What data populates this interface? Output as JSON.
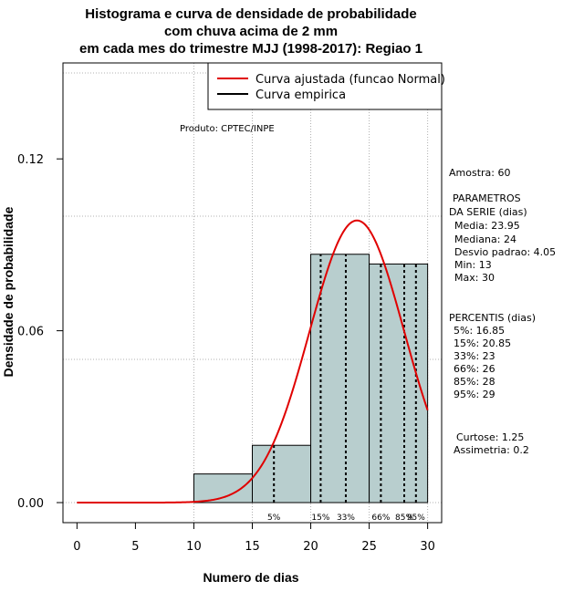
{
  "chart_data": {
    "type": "bar",
    "title_lines": [
      "Histograma e curva de densidade de probabilidade",
      "com chuva acima de 2 mm",
      "em cada mes do trimestre MJJ (1998-2017): Regiao 1"
    ],
    "xlabel": "Numero de dias",
    "ylabel": "Densidade de probabilidade",
    "xlim": [
      -1.2,
      31.2
    ],
    "ylim": [
      -0.007,
      0.1535
    ],
    "xticks": [
      0,
      5,
      10,
      15,
      20,
      25,
      30
    ],
    "xtick_labels": [
      "0",
      "5",
      "10",
      "15",
      "20",
      "25",
      "30"
    ],
    "yticks": [
      0.0,
      0.06,
      0.12
    ],
    "ytick_labels": [
      "0.00",
      "0.06",
      "0.12"
    ],
    "x_gridlines": [
      10,
      15,
      20,
      25,
      30
    ],
    "y_gridlines": [
      0.0,
      0.05,
      0.1,
      0.15
    ],
    "grid": true,
    "bins": [
      {
        "x0": 10,
        "x1": 15,
        "value": 0.01
      },
      {
        "x0": 15,
        "x1": 20,
        "value": 0.02
      },
      {
        "x0": 20,
        "x1": 25,
        "value": 0.0867
      },
      {
        "x0": 25,
        "x1": 30,
        "value": 0.0833
      }
    ],
    "bar_color": "#b8cece",
    "normal_curve": {
      "name": "Curva ajustada (funcao Normal)",
      "color": "#e00000",
      "mean": 23.95,
      "sd": 4.05,
      "x_range": [
        0,
        30
      ]
    },
    "empirical_curve": {
      "name": "Curva empirica",
      "color": "#000000"
    },
    "legend_position": "top-right",
    "percentile_lines": [
      {
        "x": 16.85,
        "label": "5%"
      },
      {
        "x": 20.85,
        "label": "15%"
      },
      {
        "x": 23,
        "label": "33%"
      },
      {
        "x": 26,
        "label": "66%"
      },
      {
        "x": 28,
        "label": "85%"
      },
      {
        "x": 29,
        "label": "95%"
      }
    ],
    "annotation": "Produto: CPTEC/INPE"
  },
  "stats": {
    "sample": "Amostra: 60",
    "params_title_1": "PARAMETROS",
    "params_title_2": "DA SERIE (dias)",
    "mean": "Media: 23.95",
    "median": "Mediana: 24",
    "sd": "Desvio padrao: 4.05",
    "min": "Min: 13",
    "max": "Max: 30",
    "pct_title": "PERCENTIS (dias)",
    "p5": "5%: 16.85",
    "p15": "15%: 20.85",
    "p33": "33%: 23",
    "p66": "66%: 26",
    "p85": "85%: 28",
    "p95": "95%: 29",
    "kurtosis": "Curtose: 1.25",
    "skewness": "Assimetria: 0.2"
  }
}
